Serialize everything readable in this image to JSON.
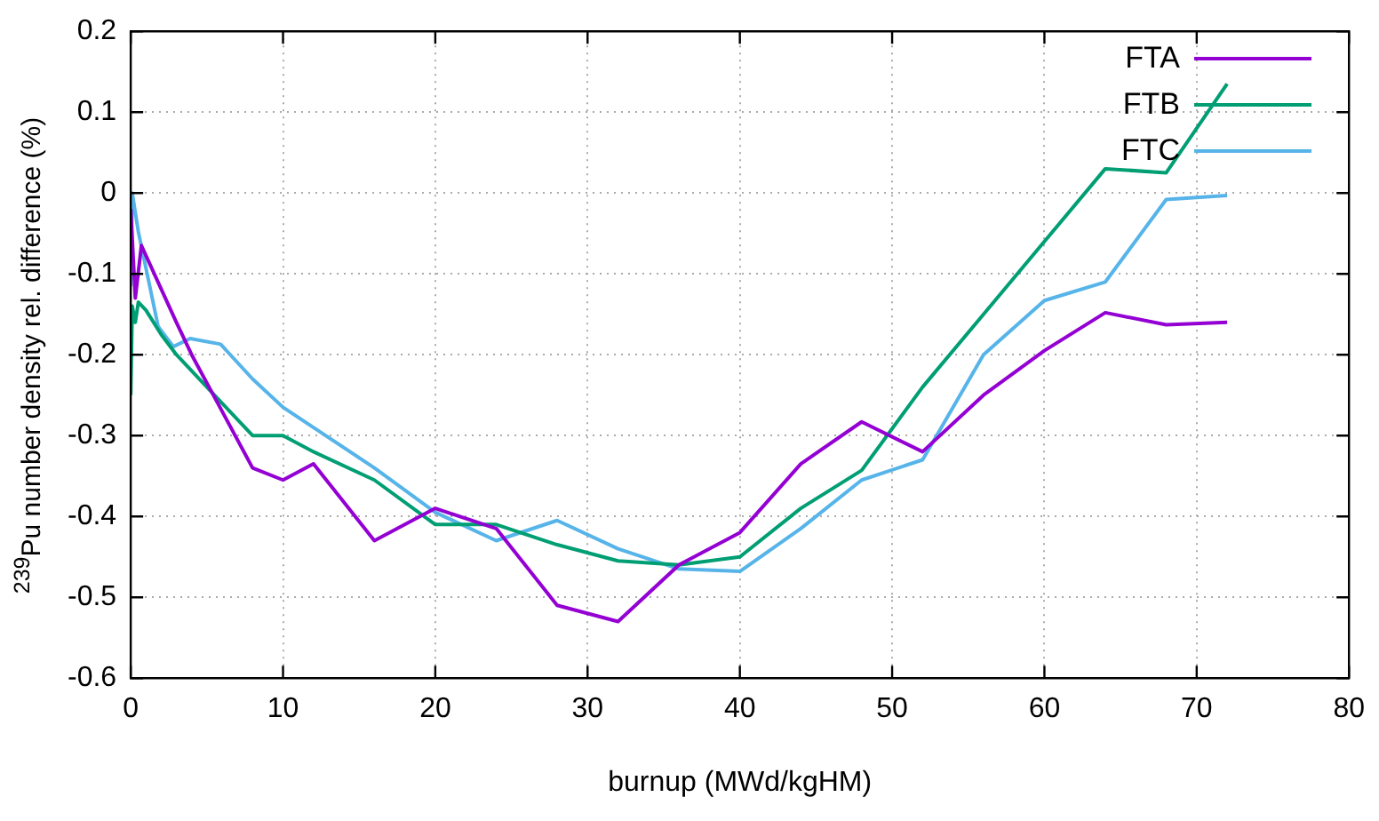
{
  "chart_data": {
    "type": "line",
    "xlabel": "burnup (MWd/kgHM)",
    "ylabel": "$^{239}$Pu number density rel. difference (%)",
    "xlim": [
      0,
      80
    ],
    "xticks": [
      0,
      10,
      20,
      30,
      40,
      50,
      60,
      70,
      80
    ],
    "ylim": [
      -0.6,
      0.2
    ],
    "yticks": [
      -0.6,
      -0.5,
      -0.4,
      -0.3,
      -0.2,
      -0.1,
      0,
      0.1,
      0.2
    ],
    "grid": true,
    "legend": "top right",
    "marker": "none",
    "line_style": "solid",
    "series": [
      {
        "name": "FTA",
        "color": "#9400d3",
        "x": [
          0,
          0.3,
          0.7,
          3,
          4,
          6,
          8,
          10,
          12,
          16,
          20,
          24,
          28,
          32,
          36,
          40,
          44,
          48,
          52,
          56,
          60,
          64,
          68,
          72
        ],
        "values": [
          -0.02,
          -0.13,
          -0.065,
          -0.16,
          -0.2,
          -0.27,
          -0.34,
          -0.355,
          -0.335,
          -0.43,
          -0.39,
          -0.415,
          -0.51,
          -0.53,
          -0.46,
          -0.42,
          -0.335,
          -0.283,
          -0.32,
          -0.25,
          -0.195,
          -0.148,
          -0.163,
          -0.16
        ]
      },
      {
        "name": "FTB",
        "color": "#009e73",
        "x": [
          0,
          0.1,
          0.3,
          0.5,
          1,
          2,
          3,
          6,
          8,
          10,
          12,
          16,
          20,
          24,
          28,
          32,
          36,
          40,
          44,
          48,
          52,
          56,
          60,
          64,
          68,
          72
        ],
        "values": [
          -0.25,
          -0.14,
          -0.16,
          -0.135,
          -0.145,
          -0.175,
          -0.2,
          -0.26,
          -0.3,
          -0.3,
          -0.32,
          -0.355,
          -0.41,
          -0.41,
          -0.435,
          -0.455,
          -0.46,
          -0.45,
          -0.39,
          -0.343,
          -0.24,
          -0.15,
          -0.06,
          0.03,
          0.025,
          0.135
        ]
      },
      {
        "name": "FTC",
        "color": "#56b4e9",
        "x": [
          0,
          0.1,
          0.5,
          1.8,
          2.8,
          3.9,
          5.9,
          8,
          10,
          12,
          16,
          20,
          24,
          28,
          32,
          36,
          40,
          44,
          48,
          52,
          56,
          60,
          64,
          68,
          72
        ],
        "values": [
          -0.115,
          0,
          -0.048,
          -0.165,
          -0.19,
          -0.18,
          -0.187,
          -0.23,
          -0.265,
          -0.29,
          -0.34,
          -0.395,
          -0.43,
          -0.405,
          -0.44,
          -0.465,
          -0.468,
          -0.415,
          -0.355,
          -0.33,
          -0.2,
          -0.133,
          -0.11,
          -0.008,
          -0.003
        ]
      }
    ]
  }
}
